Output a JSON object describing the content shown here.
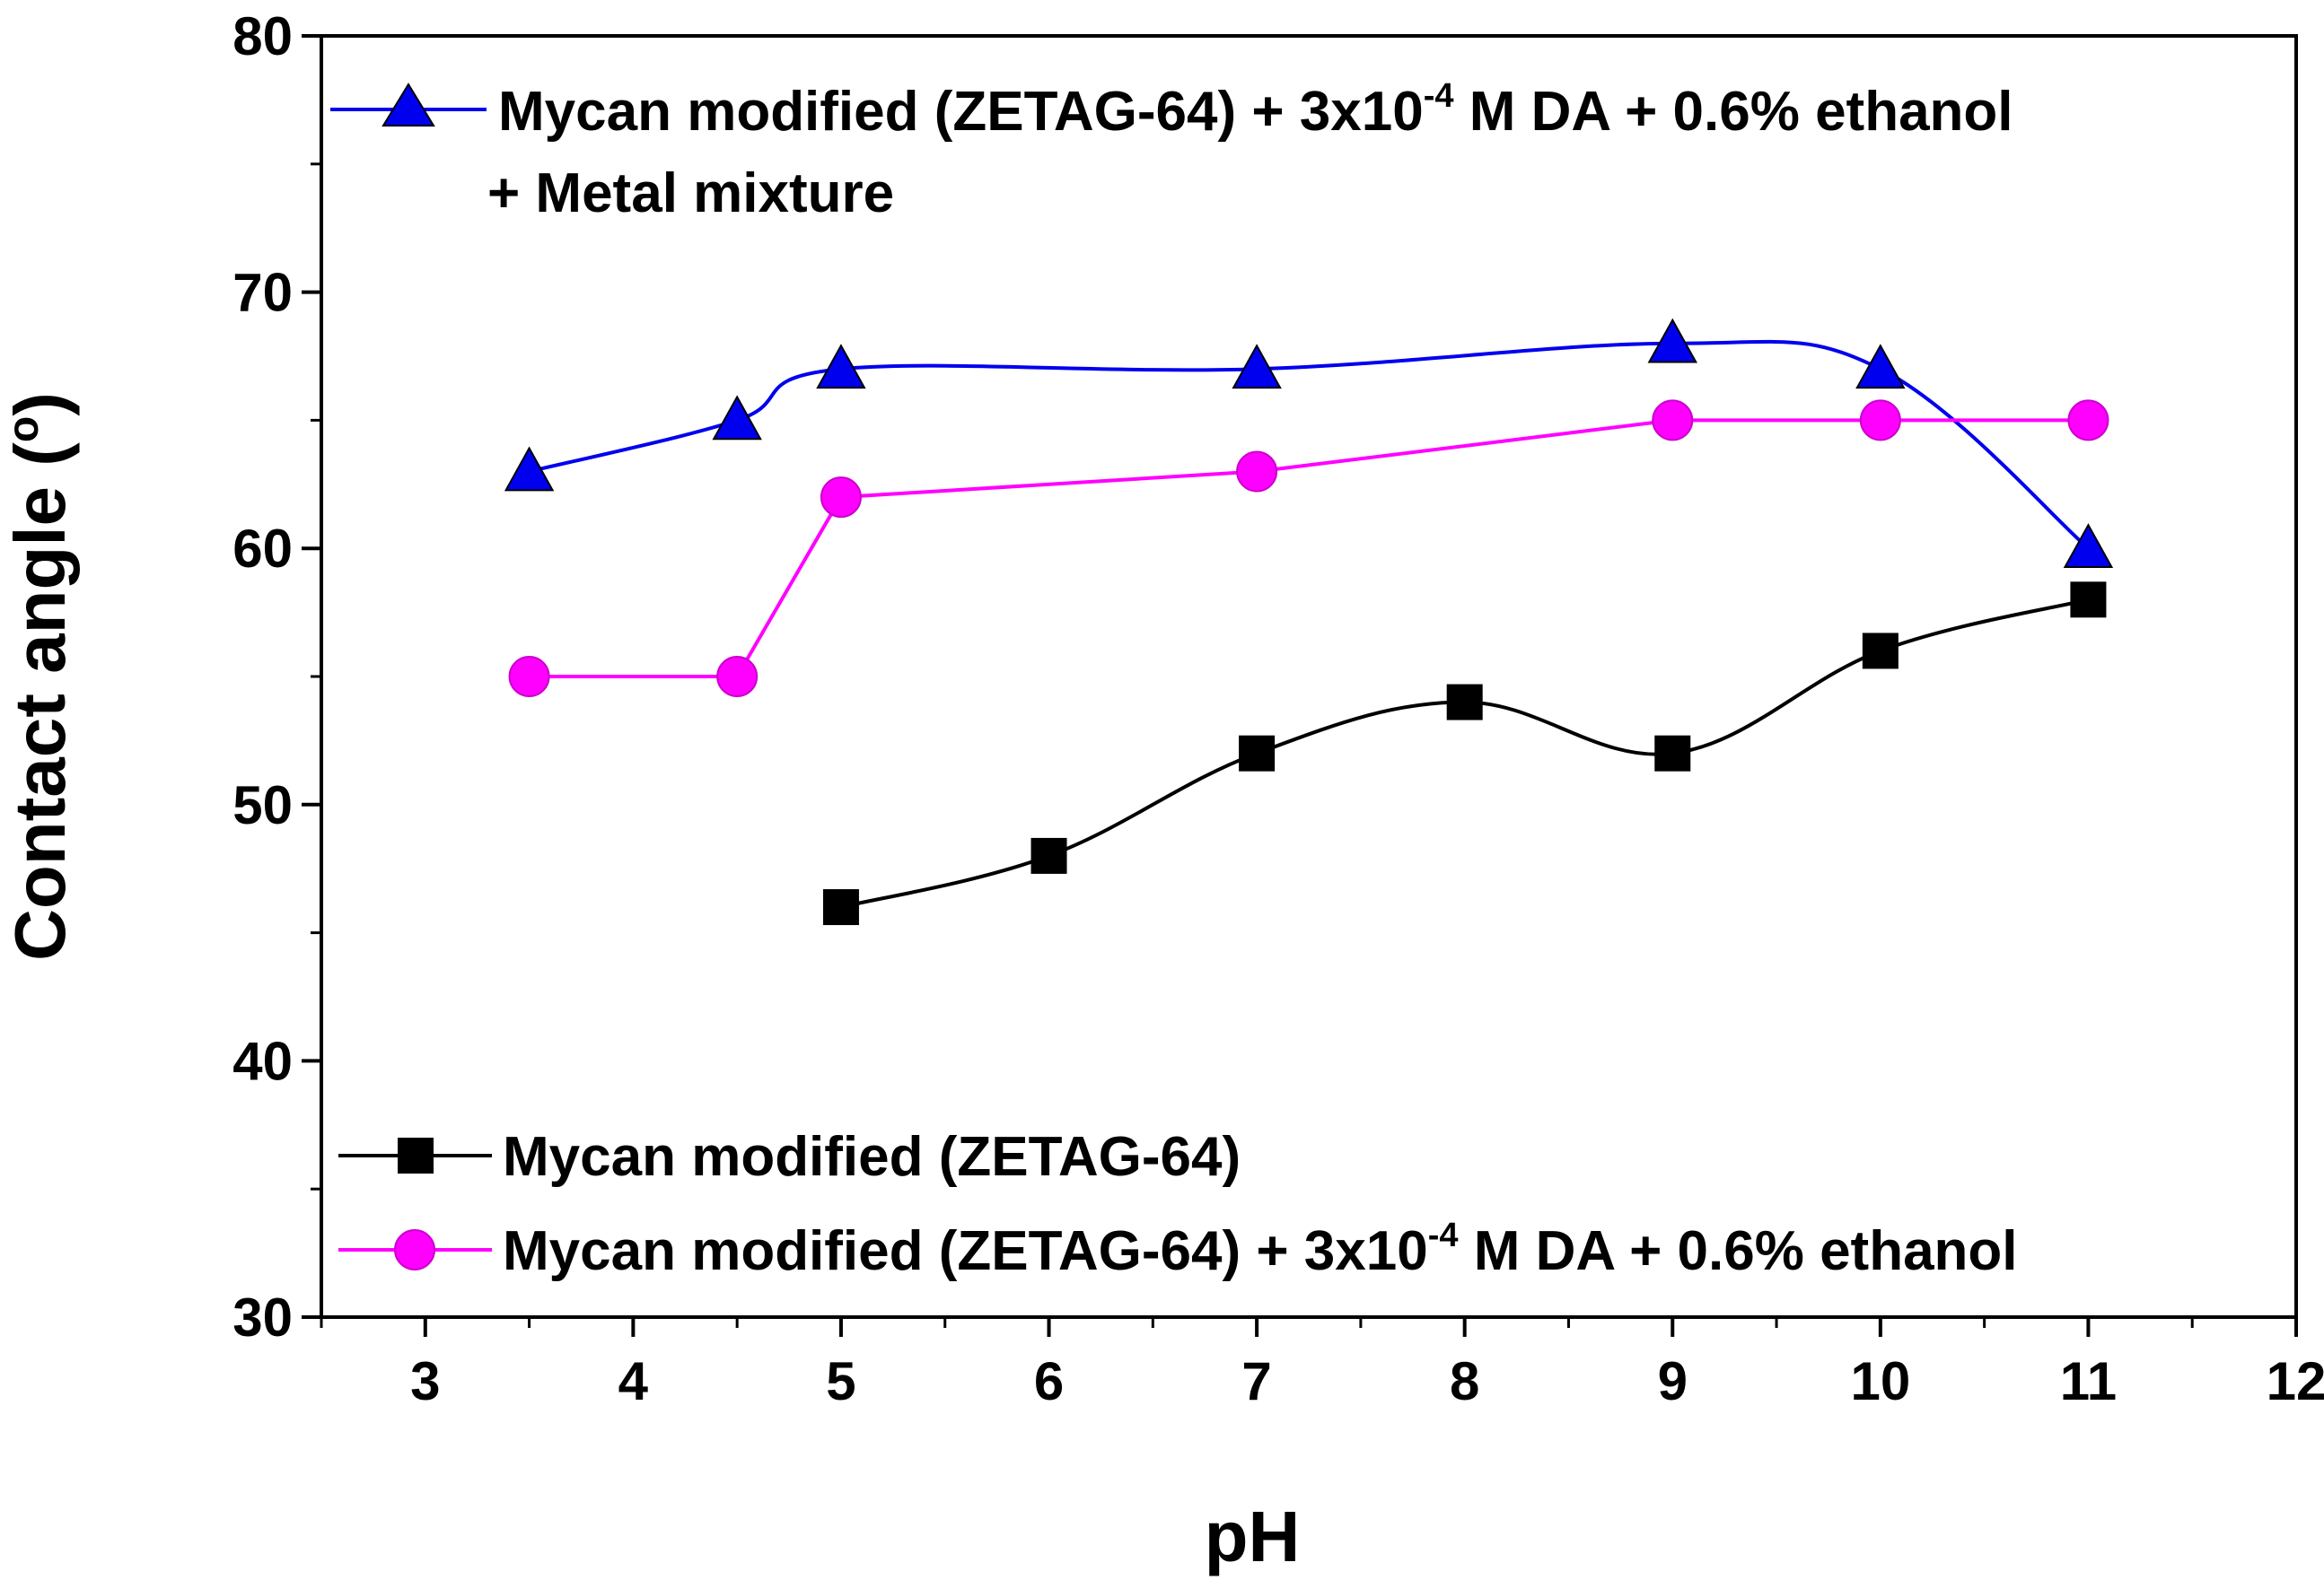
{
  "chart_data": {
    "type": "line",
    "title": "",
    "xlabel": "pH",
    "ylabel": "Contact angle (°)",
    "ylabel_parts": {
      "main": "Contact angle (",
      "degree": "o",
      "close": ")"
    },
    "xlim": [
      2.5,
      12
    ],
    "ylim": [
      30,
      80
    ],
    "xticks": [
      3,
      4,
      5,
      6,
      7,
      8,
      9,
      10,
      11,
      12
    ],
    "yticks": [
      30,
      40,
      50,
      60,
      70,
      80
    ],
    "grid": false,
    "series": [
      {
        "name": "Mycan modified (ZETAG-64) + 3x10-4 M DA + 0.6% ethanol + Metal mixture",
        "legend": {
          "pre": "Mycan modified (ZETAG-64) + 3x10",
          "sup": "-4",
          "post": " M DA + 0.6% ethanol",
          "line2": "+ Metal mixture"
        },
        "color": "#0000ee",
        "marker": "triangle",
        "x": [
          3.5,
          4.5,
          5,
          7,
          9,
          10,
          11
        ],
        "y": [
          63,
          65,
          67,
          67,
          68,
          67,
          60
        ]
      },
      {
        "name": "Mycan modified (ZETAG-64) + 3x10-4 M DA + 0.6% ethanol",
        "legend": {
          "pre": "Mycan modified (ZETAG-64) + 3x10",
          "sup": "-4",
          "post": " M DA + 0.6% ethanol"
        },
        "color": "#ff00ff",
        "marker": "circle",
        "x": [
          3.5,
          4.5,
          5,
          7,
          9,
          10,
          11
        ],
        "y": [
          55,
          55,
          62,
          63,
          65,
          65,
          65
        ]
      },
      {
        "name": "Mycan modified (ZETAG-64)",
        "legend": {
          "pre": "Mycan modified (ZETAG-64)"
        },
        "color": "#000000",
        "marker": "square",
        "x": [
          5,
          6,
          7,
          8,
          9,
          10,
          11
        ],
        "y": [
          46,
          48,
          52,
          54,
          52,
          56,
          58
        ]
      }
    ]
  }
}
